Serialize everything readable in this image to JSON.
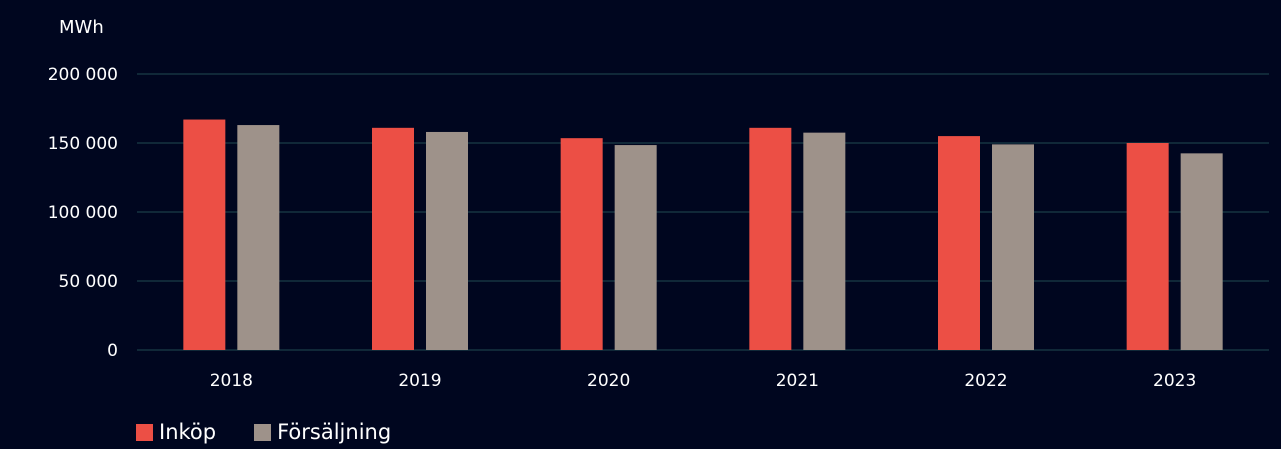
{
  "chart_data": {
    "type": "bar",
    "unit_label": "MWh",
    "categories": [
      "2018",
      "2019",
      "2020",
      "2021",
      "2022",
      "2023"
    ],
    "series": [
      {
        "name": "Inköp",
        "color": "#ec4f45",
        "values": [
          167000,
          161000,
          153500,
          161000,
          155000,
          150000
        ]
      },
      {
        "name": "Försäljning",
        "color": "#9e928a",
        "values": [
          163000,
          158000,
          148500,
          157500,
          149000,
          142500
        ]
      }
    ],
    "y_ticks": [
      "0",
      "50 000",
      "100 000",
      "150 000",
      "200 000"
    ],
    "y_tick_values": [
      0,
      50000,
      100000,
      150000,
      200000
    ],
    "ylim": [
      0,
      200000
    ],
    "grid": true,
    "gridline_color": "#1f4a52",
    "legend_position": "bottom-left"
  }
}
